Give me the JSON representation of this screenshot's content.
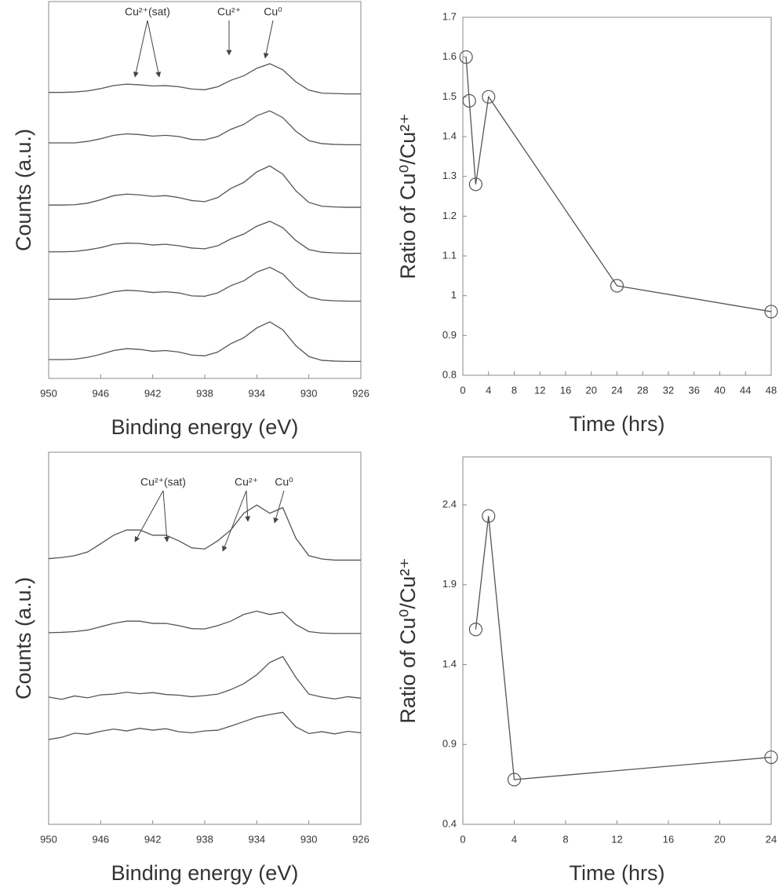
{
  "chart_data": [
    {
      "type": "line",
      "ylabel": "Counts (a.u.)",
      "xlabel": "Binding energy (eV)",
      "xlim": [
        950,
        926
      ],
      "xticks": [
        950,
        946,
        942,
        938,
        934,
        930,
        926
      ],
      "ylim": [
        0,
        100
      ],
      "color": "#555555",
      "annotations": [
        "Cu²⁺(sat)",
        "Cu²⁺",
        "Cu⁰"
      ],
      "x": [
        950,
        949,
        948,
        947,
        946,
        945,
        944,
        943,
        942,
        941,
        940,
        939,
        938,
        937,
        936,
        935,
        934,
        933,
        932,
        931,
        930,
        929,
        928,
        927,
        926
      ],
      "series": [
        {
          "values": [
            75.9,
            75.9,
            76,
            76.3,
            76.9,
            77.7,
            78.1,
            77.9,
            77.6,
            77.7,
            77.4,
            76.8,
            76.6,
            77.4,
            79.1,
            80.3,
            82.3,
            83.5,
            81.9,
            78.7,
            76.5,
            75.7,
            75.6,
            75.5,
            75.5
          ]
        },
        {
          "values": [
            62.5,
            62.5,
            62.5,
            62.9,
            63.6,
            64.5,
            64.9,
            64.7,
            64.3,
            64.5,
            64.2,
            63.4,
            63.3,
            64.2,
            66.1,
            67.4,
            69.7,
            71,
            69.2,
            65.6,
            63.1,
            62.3,
            62.1,
            62,
            62
          ]
        },
        {
          "values": [
            46,
            46,
            46.1,
            46.5,
            47.4,
            48.5,
            48.9,
            48.7,
            48.3,
            48.5,
            48,
            47.2,
            46.9,
            48,
            50.4,
            52,
            54.8,
            56.4,
            54.2,
            49.8,
            46.7,
            45.7,
            45.5,
            45.4,
            45.4
          ]
        },
        {
          "values": [
            33.6,
            33.6,
            33.7,
            34.1,
            34.7,
            35.6,
            35.9,
            35.8,
            35.4,
            35.6,
            35.2,
            34.6,
            34.4,
            35.2,
            37,
            38.3,
            40.4,
            41.7,
            40,
            36.6,
            34.2,
            33.5,
            33.3,
            33.2,
            33.2
          ]
        },
        {
          "values": [
            21,
            21,
            21,
            21.4,
            22.1,
            23,
            23.4,
            23.2,
            22.8,
            23,
            22.7,
            21.9,
            21.8,
            22.7,
            24.6,
            25.9,
            28.2,
            29.5,
            27.7,
            24.1,
            21.6,
            20.8,
            20.6,
            20.5,
            20.5
          ]
        },
        {
          "values": [
            5,
            5,
            5.1,
            5.6,
            6.4,
            7.4,
            7.9,
            7.7,
            7.2,
            7.4,
            7,
            6.2,
            6,
            7,
            9.2,
            10.8,
            13.4,
            15,
            12.9,
            8.7,
            5.8,
            4.8,
            4.6,
            4.5,
            4.5
          ]
        }
      ]
    },
    {
      "type": "line",
      "marker": "circle",
      "ylabel": "Ratio of Cu⁰/Cu²⁺",
      "xlabel": "Time (hrs)",
      "xlim": [
        0,
        48
      ],
      "xticks": [
        0,
        4,
        8,
        12,
        16,
        20,
        24,
        28,
        32,
        36,
        40,
        44,
        48
      ],
      "ylim": [
        0.8,
        1.7
      ],
      "yticks": [
        0.8,
        0.9,
        1,
        1.1,
        1.2,
        1.3,
        1.4,
        1.5,
        1.6,
        1.7
      ],
      "color": "#555555",
      "x": [
        0.5,
        1,
        2,
        4,
        24,
        48
      ],
      "values": [
        1.6,
        1.49,
        1.28,
        1.5,
        1.025,
        0.96
      ]
    },
    {
      "type": "line",
      "ylabel": "Counts (a.u.)",
      "xlabel": "Binding energy (eV)",
      "xlim": [
        950,
        926
      ],
      "xticks": [
        950,
        946,
        942,
        938,
        934,
        930,
        926
      ],
      "ylim": [
        0,
        100
      ],
      "color": "#555555",
      "annotations": [
        "Cu²⁺(sat)",
        "Cu²⁺",
        "Cu⁰"
      ],
      "x": [
        950,
        949,
        948,
        947,
        946,
        945,
        944,
        943,
        942,
        941,
        940,
        939,
        938,
        937,
        936,
        935,
        934,
        933,
        932,
        931,
        930,
        929,
        928,
        927,
        926
      ],
      "series": [
        {
          "values": [
            71.4,
            71.7,
            72.2,
            73.2,
            75.4,
            77.7,
            79.1,
            79.1,
            77.7,
            77.7,
            76.2,
            74.3,
            74,
            76.2,
            79.1,
            83.6,
            85.8,
            83.6,
            85.1,
            76.9,
            72.2,
            71.3,
            71,
            71,
            71
          ]
        },
        {
          "values": [
            51.5,
            51.6,
            51.8,
            52.2,
            53.1,
            54,
            54.6,
            54.6,
            54,
            54,
            53.4,
            52.6,
            52.5,
            53.4,
            54.6,
            56.4,
            57.3,
            56.4,
            57,
            53.7,
            51.8,
            51.4,
            51.3,
            51.3,
            51.3
          ]
        },
        {
          "values": [
            34.2,
            33.6,
            34.5,
            34,
            34.8,
            35,
            35.5,
            35.1,
            35.4,
            34.9,
            34.7,
            34.3,
            34.6,
            35,
            36.2,
            37.8,
            40.2,
            43.5,
            45.1,
            39.5,
            35,
            34.2,
            33.7,
            34.3,
            33.9
          ]
        },
        {
          "values": [
            22.8,
            23.4,
            24.5,
            24.2,
            25,
            25.6,
            25.1,
            25.8,
            25.3,
            25.7,
            24.9,
            24.6,
            25.1,
            25.3,
            26.4,
            27.6,
            28.8,
            29.5,
            30.1,
            26.2,
            24.4,
            24.9,
            24.3,
            25,
            24.6
          ]
        }
      ]
    },
    {
      "type": "line",
      "marker": "circle",
      "ylabel": "Ratio of Cu⁰/Cu²⁺",
      "xlabel": "Time (hrs)",
      "xlim": [
        0,
        24
      ],
      "xticks": [
        0,
        4,
        8,
        12,
        16,
        20,
        24
      ],
      "ylim": [
        0.4,
        2.7
      ],
      "yticks": [
        0.4,
        0.9,
        1.4,
        1.9,
        2.4
      ],
      "color": "#555555",
      "x": [
        1,
        2,
        4,
        24
      ],
      "values": [
        1.62,
        2.33,
        0.68,
        0.82
      ]
    }
  ]
}
